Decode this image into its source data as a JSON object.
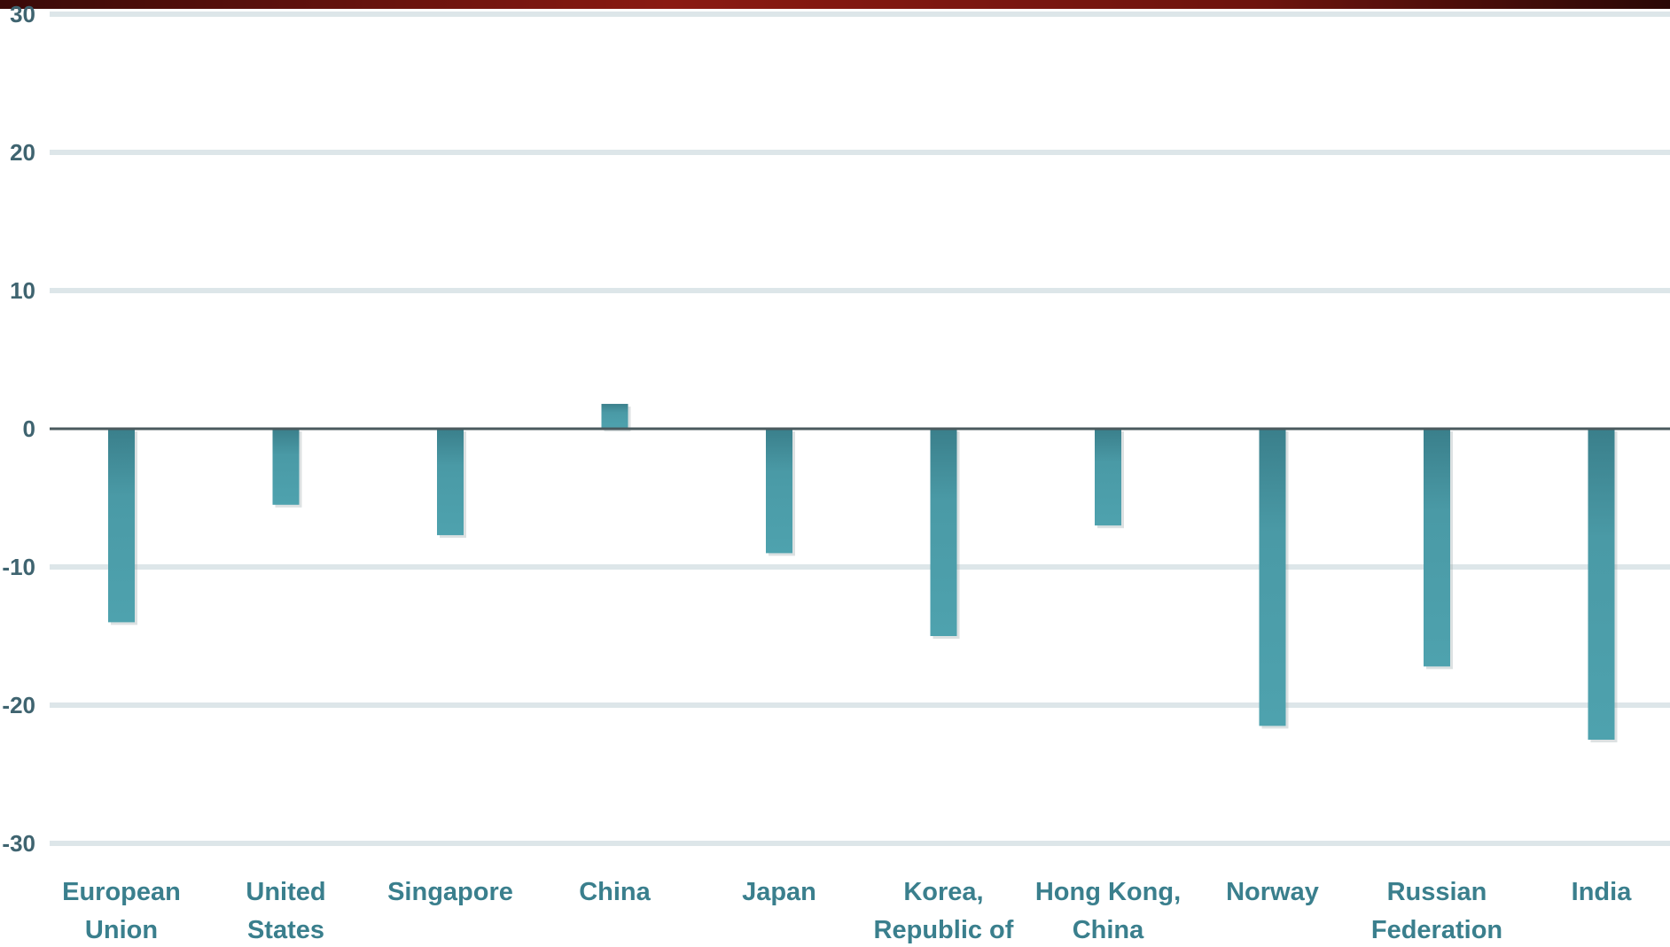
{
  "colors": {
    "bar": "#4a9aa6",
    "bar_dark": "#3a7f8b",
    "gridline": "#dde6e9",
    "zero_line": "#4a5a5e",
    "tick_text": "#3f6470",
    "category_text": "#3a7f8d"
  },
  "chart_data": {
    "type": "bar",
    "title": "",
    "xlabel": "",
    "ylabel": "",
    "ylim": [
      -30,
      30
    ],
    "yticks": [
      "30",
      "20",
      "10",
      "0",
      "-10",
      "-20",
      "-30"
    ],
    "grid": true,
    "categories": [
      [
        "European",
        "Union"
      ],
      [
        "United",
        "States"
      ],
      [
        "Singapore"
      ],
      [
        "China"
      ],
      [
        "Japan"
      ],
      [
        "Korea,",
        "Republic of"
      ],
      [
        "Hong Kong,",
        "China"
      ],
      [
        "Norway"
      ],
      [
        "Russian",
        "Federation"
      ],
      [
        "India"
      ]
    ],
    "values": [
      -14,
      -5.5,
      -7.7,
      1.8,
      -9,
      -15,
      -7,
      -21.5,
      -17.2,
      -22.5
    ]
  }
}
